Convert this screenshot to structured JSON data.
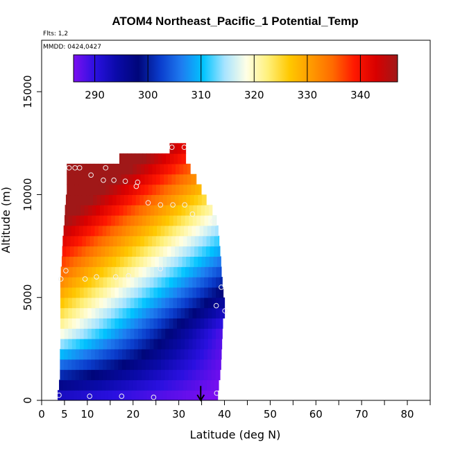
{
  "chart_data": {
    "type": "heatmap",
    "title": "ATOM4 Northeast_Pacific_1 Potential_Temp",
    "subtitle_flights": "Flts: 1,2",
    "subtitle_dates": "MMDD: 0424,0427",
    "xlabel": "Latitude (deg N)",
    "ylabel": "Altitude (m)",
    "xlim": [
      0,
      85
    ],
    "ylim": [
      0,
      17500
    ],
    "x_ticks": [
      0,
      5,
      10,
      20,
      30,
      40,
      50,
      60,
      70,
      80
    ],
    "x_minor_ticks": [
      15,
      25,
      35,
      45,
      55,
      65,
      75,
      85
    ],
    "y_ticks": [
      0,
      5000,
      10000,
      15000
    ],
    "colorbar": {
      "min": 286,
      "max": 347,
      "ticks": [
        290,
        300,
        310,
        320,
        330,
        340
      ],
      "colors": [
        "#7b0ff0",
        "#2a10e0",
        "#0a0aa8",
        "#00067a",
        "#0a3ccc",
        "#1e7cf0",
        "#00c4ff",
        "#a8e4ff",
        "#ffffe6",
        "#fff07a",
        "#ffc800",
        "#ff9a00",
        "#ff6a00",
        "#ff1800",
        "#d80000",
        "#a01818"
      ]
    },
    "field": {
      "surface_theta": 288,
      "lapse_k_per_km": 5.2,
      "lat_gradient_k_per_deg": -0.9,
      "lat_reference": 20,
      "bin_height_m": 500,
      "lat_bin_deg": 0.85
    },
    "profile_extent": [
      {
        "alt": 250,
        "lat_min": 3.5,
        "lat_max": 38.5
      },
      {
        "alt": 750,
        "lat_min": 3.8,
        "lat_max": 38.7
      },
      {
        "alt": 1250,
        "lat_min": 4.0,
        "lat_max": 39.0
      },
      {
        "alt": 1750,
        "lat_min": 4.0,
        "lat_max": 39.2
      },
      {
        "alt": 2250,
        "lat_min": 4.0,
        "lat_max": 39.3
      },
      {
        "alt": 2750,
        "lat_min": 4.1,
        "lat_max": 39.4
      },
      {
        "alt": 3250,
        "lat_min": 4.1,
        "lat_max": 39.5
      },
      {
        "alt": 3750,
        "lat_min": 4.1,
        "lat_max": 39.6
      },
      {
        "alt": 4250,
        "lat_min": 4.1,
        "lat_max": 40.0
      },
      {
        "alt": 4750,
        "lat_min": 4.1,
        "lat_max": 40.0
      },
      {
        "alt": 5250,
        "lat_min": 4.1,
        "lat_max": 39.7
      },
      {
        "alt": 5750,
        "lat_min": 4.1,
        "lat_max": 39.5
      },
      {
        "alt": 6250,
        "lat_min": 4.2,
        "lat_max": 39.3
      },
      {
        "alt": 6750,
        "lat_min": 4.4,
        "lat_max": 39.2
      },
      {
        "alt": 7250,
        "lat_min": 4.5,
        "lat_max": 39.0
      },
      {
        "alt": 7750,
        "lat_min": 4.6,
        "lat_max": 38.8
      },
      {
        "alt": 8250,
        "lat_min": 4.8,
        "lat_max": 38.6
      },
      {
        "alt": 8750,
        "lat_min": 5.0,
        "lat_max": 38.2
      },
      {
        "alt": 9250,
        "lat_min": 5.1,
        "lat_max": 37.3
      },
      {
        "alt": 9750,
        "lat_min": 5.3,
        "lat_max": 36.0
      },
      {
        "alt": 10250,
        "lat_min": 5.5,
        "lat_max": 34.9
      },
      {
        "alt": 10750,
        "lat_min": 5.5,
        "lat_max": 33.8
      },
      {
        "alt": 11250,
        "lat_min": 5.5,
        "lat_max": 32.5
      },
      {
        "alt": 11750,
        "lat_min": 17.0,
        "lat_max": 31.5
      },
      {
        "alt": 12250,
        "lat_min": 28.0,
        "lat_max": 31.5
      }
    ],
    "sample_points": [
      {
        "lat": 3.8,
        "alt": 250
      },
      {
        "lat": 10.5,
        "alt": 200
      },
      {
        "lat": 17.5,
        "alt": 200
      },
      {
        "lat": 24.5,
        "alt": 150
      },
      {
        "lat": 38.3,
        "alt": 350
      },
      {
        "lat": 4.2,
        "alt": 5900
      },
      {
        "lat": 5.3,
        "alt": 6300
      },
      {
        "lat": 9.5,
        "alt": 5900
      },
      {
        "lat": 12.0,
        "alt": 6000
      },
      {
        "lat": 16.2,
        "alt": 6000
      },
      {
        "lat": 19.0,
        "alt": 6050
      },
      {
        "lat": 26.0,
        "alt": 6400
      },
      {
        "lat": 39.3,
        "alt": 5500
      },
      {
        "lat": 38.2,
        "alt": 4600
      },
      {
        "lat": 40.1,
        "alt": 4350
      },
      {
        "lat": 6.0,
        "alt": 11300
      },
      {
        "lat": 7.3,
        "alt": 11300
      },
      {
        "lat": 8.3,
        "alt": 11300
      },
      {
        "lat": 14.0,
        "alt": 11300
      },
      {
        "lat": 10.8,
        "alt": 10950
      },
      {
        "lat": 13.5,
        "alt": 10700
      },
      {
        "lat": 15.8,
        "alt": 10700
      },
      {
        "lat": 18.3,
        "alt": 10650
      },
      {
        "lat": 21.0,
        "alt": 10600
      },
      {
        "lat": 20.7,
        "alt": 10400
      },
      {
        "lat": 23.3,
        "alt": 9600
      },
      {
        "lat": 26.0,
        "alt": 9500
      },
      {
        "lat": 28.7,
        "alt": 9500
      },
      {
        "lat": 31.3,
        "alt": 9500
      },
      {
        "lat": 33.0,
        "alt": 9050
      },
      {
        "lat": 37.5,
        "alt": 8700
      },
      {
        "lat": 28.5,
        "alt": 12300
      },
      {
        "lat": 31.2,
        "alt": 12300
      }
    ],
    "arrow": {
      "lat": 34.8,
      "alt_start": 700,
      "alt_end": 0
    }
  }
}
